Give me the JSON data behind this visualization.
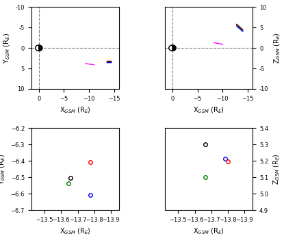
{
  "top_left": {
    "xlim": [
      1.5,
      -16
    ],
    "ylim": [
      -10,
      10
    ],
    "xlabel": "X$_{GSM}$ (R$_E$)",
    "ylabel": "Y$_{GSM}$ (R$_E$)",
    "xticks": [
      0,
      -5,
      -10,
      -15
    ],
    "yticks": [
      10,
      5,
      0,
      -5,
      -10
    ],
    "yticklabels": [
      "-10",
      "-5",
      "0",
      "5",
      "10"
    ],
    "cluster_lines": [
      {
        "color": "black",
        "x": [
          -13.5,
          -14.3
        ],
        "y": [
          -3.1,
          -3.1
        ]
      },
      {
        "color": "red",
        "x": [
          -13.5,
          -14.3
        ],
        "y": [
          -3.25,
          -3.25
        ]
      },
      {
        "color": "green",
        "x": [
          -13.5,
          -14.3
        ],
        "y": [
          -3.4,
          -3.4
        ]
      },
      {
        "color": "blue",
        "x": [
          -13.5,
          -14.3
        ],
        "y": [
          -3.55,
          -3.55
        ]
      }
    ],
    "tc1_line": {
      "color": "magenta",
      "x": [
        -9.3,
        -11.0
      ],
      "y": [
        -3.8,
        -4.1
      ]
    }
  },
  "top_right": {
    "xlim": [
      1.5,
      -16
    ],
    "ylim": [
      -10,
      10
    ],
    "xlabel": "X$_{GSM}$ (R$_E$)",
    "ylabel": "Z$_{GSM}$ (R$_E$)",
    "xticks": [
      0,
      -5,
      -10,
      -15
    ],
    "yticks": [
      10,
      5,
      0,
      -5,
      -10
    ],
    "yticklabels": [
      "10",
      "5",
      "0",
      "-5",
      "-10"
    ],
    "cluster_lines": [
      {
        "color": "black",
        "x": [
          -12.8,
          -14.0
        ],
        "y": [
          5.8,
          4.5
        ]
      },
      {
        "color": "red",
        "x": [
          -12.8,
          -14.0
        ],
        "y": [
          5.65,
          4.35
        ]
      },
      {
        "color": "green",
        "x": [
          -12.8,
          -14.0
        ],
        "y": [
          5.5,
          4.2
        ]
      },
      {
        "color": "blue",
        "x": [
          -12.8,
          -14.0
        ],
        "y": [
          5.35,
          4.05
        ]
      }
    ],
    "tc1_line": {
      "color": "magenta",
      "x": [
        -8.3,
        -10.0
      ],
      "y": [
        1.3,
        0.9
      ]
    }
  },
  "bot_left": {
    "xlim": [
      -13.42,
      -13.95
    ],
    "ylim": [
      -6.7,
      -6.2
    ],
    "xlabel": "X$_{GSM}$ (R$_E$)",
    "ylabel": "Y$_{GSM}$ (R$_E$)",
    "xticks": [
      -13.5,
      -13.6,
      -13.7,
      -13.8,
      -13.9
    ],
    "yticks": [
      -6.7,
      -6.6,
      -6.5,
      -6.4,
      -6.3,
      -6.2
    ],
    "points": {
      "black": [
        -13.655,
        -6.505
      ],
      "green": [
        -13.645,
        -6.535
      ],
      "blue": [
        -13.775,
        -6.608
      ],
      "red": [
        -13.775,
        -6.408
      ]
    }
  },
  "bot_right": {
    "xlim": [
      -13.42,
      -13.95
    ],
    "ylim": [
      4.9,
      5.4
    ],
    "xlabel": "X$_{GSM}$ (R$_E$)",
    "ylabel": "Z$_{GSM}$ (R$_E$)",
    "xticks": [
      -13.5,
      -13.6,
      -13.7,
      -13.8,
      -13.9
    ],
    "yticks": [
      4.9,
      5.0,
      5.1,
      5.2,
      5.3,
      5.4
    ],
    "points": {
      "black": [
        -13.665,
        5.3
      ],
      "green": [
        -13.665,
        5.1
      ],
      "blue": [
        -13.785,
        5.215
      ],
      "red": [
        -13.8,
        5.195
      ]
    }
  }
}
